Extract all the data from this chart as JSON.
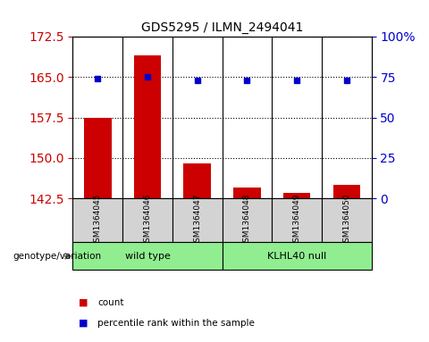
{
  "title": "GDS5295 / ILMN_2494041",
  "samples": [
    "GSM1364045",
    "GSM1364046",
    "GSM1364047",
    "GSM1364048",
    "GSM1364049",
    "GSM1364050"
  ],
  "counts": [
    157.5,
    169.0,
    149.0,
    144.5,
    143.5,
    145.0
  ],
  "percentiles": [
    74,
    75,
    73,
    73,
    73,
    73
  ],
  "ylim_left": [
    142.5,
    172.5
  ],
  "yticks_left": [
    142.5,
    150.0,
    157.5,
    165.0,
    172.5
  ],
  "ylim_right": [
    0,
    100
  ],
  "yticks_right": [
    0,
    25,
    50,
    75,
    100
  ],
  "bar_color": "#cc0000",
  "dot_color": "#0000cc",
  "bar_width": 0.55,
  "groups": [
    {
      "label": "wild type",
      "indices": [
        0,
        1,
        2
      ],
      "color": "#90ee90"
    },
    {
      "label": "KLHL40 null",
      "indices": [
        3,
        4,
        5
      ],
      "color": "#90ee90"
    }
  ],
  "group_label_prefix": "genotype/variation",
  "legend_items": [
    {
      "color": "#cc0000",
      "label": "count"
    },
    {
      "color": "#0000cc",
      "label": "percentile rank within the sample"
    }
  ],
  "grid_color": "black",
  "ytick_color_left": "#cc0000",
  "ytick_color_right": "#0000cc",
  "xticklabel_bg": "#d3d3d3"
}
